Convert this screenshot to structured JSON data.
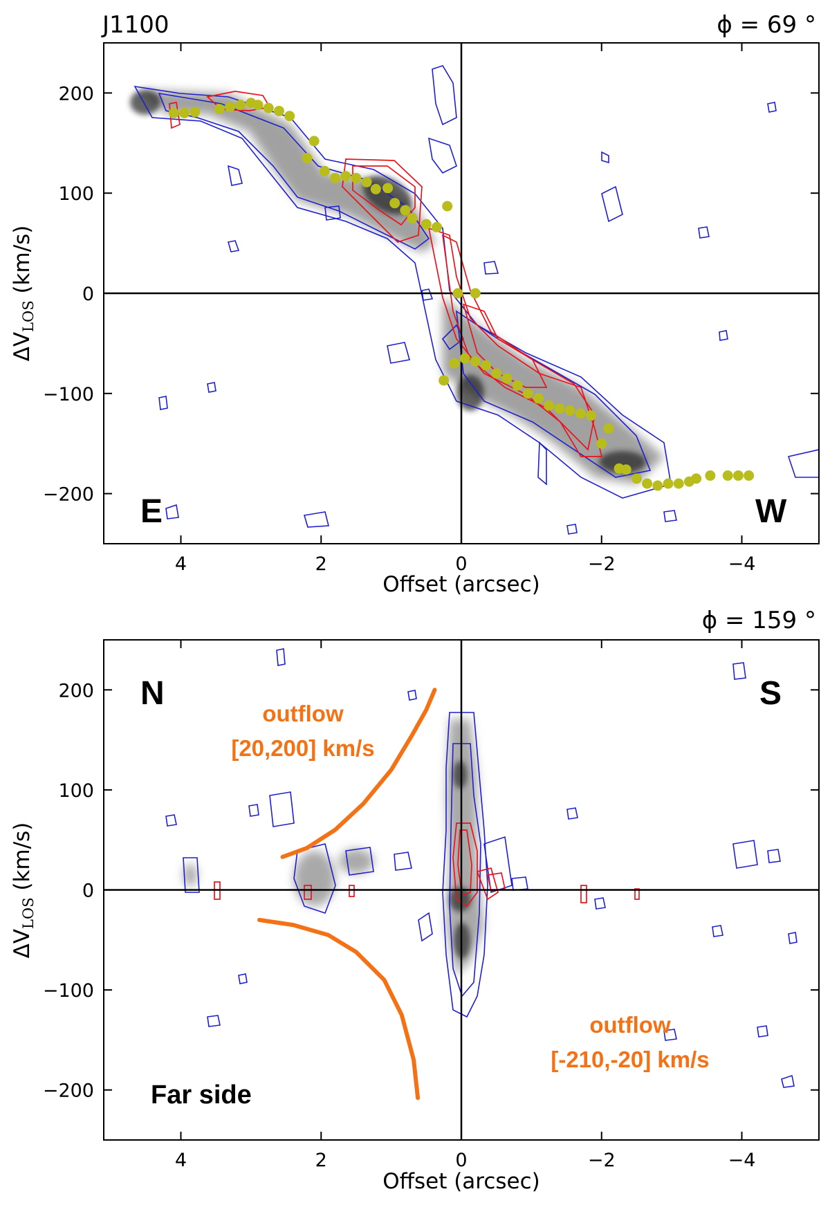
{
  "chart_data": [
    {
      "type": "scatter",
      "panel": "top",
      "title": "J1100",
      "angle_label": "ϕ = 69 °",
      "xlabel": "Offset (arcsec)",
      "ylabel": "ΔV",
      "ylabel_sub": "LOS",
      "ylabel_unit": " (km/s)",
      "xlim": [
        5.1,
        -5.1
      ],
      "ylim": [
        -250,
        250
      ],
      "xticks": [
        4,
        2,
        0,
        -2,
        -4
      ],
      "yticks": [
        -200,
        -100,
        0,
        100,
        200
      ],
      "xtick_labels": [
        "4",
        "2",
        "0",
        "−2",
        "−4"
      ],
      "ytick_labels": [
        "−200",
        "−100",
        "0",
        "100",
        "200"
      ],
      "corner_labels": {
        "left": "E",
        "right": "W"
      },
      "colors": {
        "observed_contours": "#1f1fcc",
        "model_contours": "#e8141c",
        "emission": "#555555",
        "kinematic_points": "#b8bd1c"
      },
      "series": [
        {
          "name": "",
          "type": "scatter",
          "x": [
            4.1,
            3.95,
            3.8,
            3.45,
            3.3,
            3.15,
            3.0,
            2.9,
            2.75,
            2.6,
            2.45,
            2.2,
            2.1,
            1.95,
            1.8,
            1.65,
            1.5,
            1.35,
            1.22,
            1.05,
            0.95,
            0.8,
            0.7,
            0.5,
            0.35,
            0.2,
            0.05,
            -0.2,
            0.25,
            0.1,
            -0.05,
            -0.2,
            -0.35,
            -0.5,
            -0.65,
            -0.8,
            -0.95,
            -1.1,
            -1.25,
            -1.4,
            -1.55,
            -1.7,
            -1.85,
            -2.0,
            -2.1,
            -2.25,
            -2.35,
            -2.5,
            -2.65,
            -2.8,
            -2.95,
            -3.1,
            -3.25,
            -3.35,
            -3.55,
            -3.8,
            -3.95,
            -4.1
          ],
          "y": [
            180,
            180,
            181,
            184,
            186,
            188,
            190,
            188,
            185,
            182,
            177,
            135,
            152,
            122,
            115,
            117,
            115,
            111,
            104,
            105,
            90,
            83,
            75,
            69,
            66,
            87,
            0,
            0,
            -87,
            -70,
            -65,
            -68,
            -72,
            -80,
            -85,
            -92,
            -100,
            -105,
            -112,
            -115,
            -117,
            -120,
            -122,
            -150,
            -135,
            -175,
            -176,
            -185,
            -190,
            -192,
            -190,
            -190,
            -188,
            -185,
            -182,
            -182,
            -182,
            -182
          ]
        }
      ]
    },
    {
      "type": "scatter",
      "panel": "bottom",
      "title": "",
      "angle_label": "ϕ = 159 °",
      "xlabel": "Offset (arcsec)",
      "ylabel": "ΔV",
      "ylabel_sub": "LOS",
      "ylabel_unit": " (km/s)",
      "xlim": [
        5.1,
        -5.1
      ],
      "ylim": [
        -250,
        250
      ],
      "xticks": [
        4,
        2,
        0,
        -2,
        -4
      ],
      "yticks": [
        -200,
        -100,
        0,
        100,
        200
      ],
      "xtick_labels": [
        "4",
        "2",
        "0",
        "−2",
        "−4"
      ],
      "ytick_labels": [
        "−200",
        "−100",
        "0",
        "100",
        "200"
      ],
      "corner_labels": {
        "left": "N",
        "right": "S"
      },
      "side_label": "Far side",
      "colors": {
        "observed_contours": "#1f1fcc",
        "model_contours": "#e8141c",
        "emission": "#555555",
        "outflow": "#f47216"
      },
      "annotations": [
        {
          "line1": "outflow",
          "line2": "[20,200] km/s"
        },
        {
          "line1": "outflow",
          "line2": "[-210,-20] km/s"
        }
      ],
      "outflow_curves": [
        {
          "x": [
            2.55,
            2.2,
            1.8,
            1.4,
            1.0,
            0.7,
            0.5,
            0.38
          ],
          "y": [
            33,
            42,
            60,
            86,
            120,
            155,
            180,
            200
          ]
        },
        {
          "x": [
            0.62,
            0.68,
            0.85,
            1.1,
            1.5,
            1.9,
            2.4,
            2.88
          ],
          "y": [
            -208,
            -170,
            -125,
            -90,
            -62,
            -45,
            -35,
            -30
          ]
        }
      ]
    }
  ]
}
